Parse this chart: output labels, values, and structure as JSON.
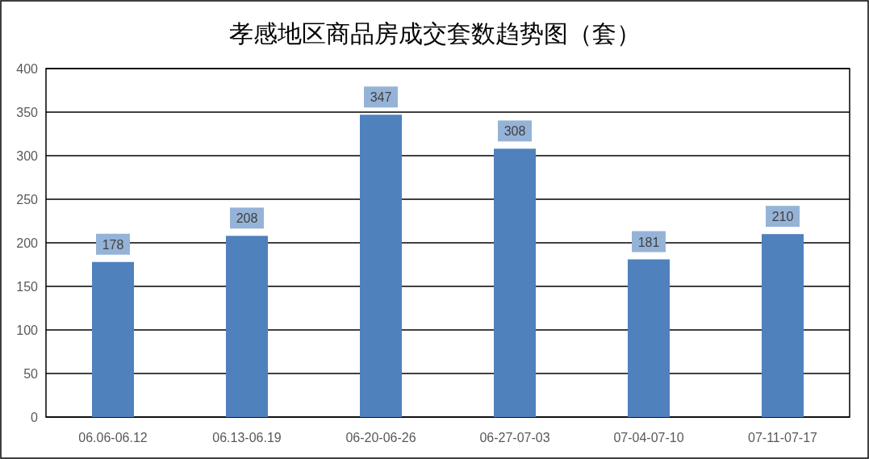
{
  "chart_data": {
    "type": "bar",
    "title": "孝感地区商品房成交套数趋势图（套）",
    "categories": [
      "06.06-06.12",
      "06.13-06.19",
      "06-20-06-26",
      "06-27-07-03",
      "07-04-07-10",
      "07-11-07-17"
    ],
    "values": [
      178,
      208,
      347,
      308,
      181,
      210
    ],
    "color": "#4f81bd",
    "ylim": [
      0,
      400
    ],
    "yticks": [
      0,
      50,
      100,
      150,
      200,
      250,
      300,
      350,
      400
    ],
    "grid": "y",
    "data_labels": true
  }
}
